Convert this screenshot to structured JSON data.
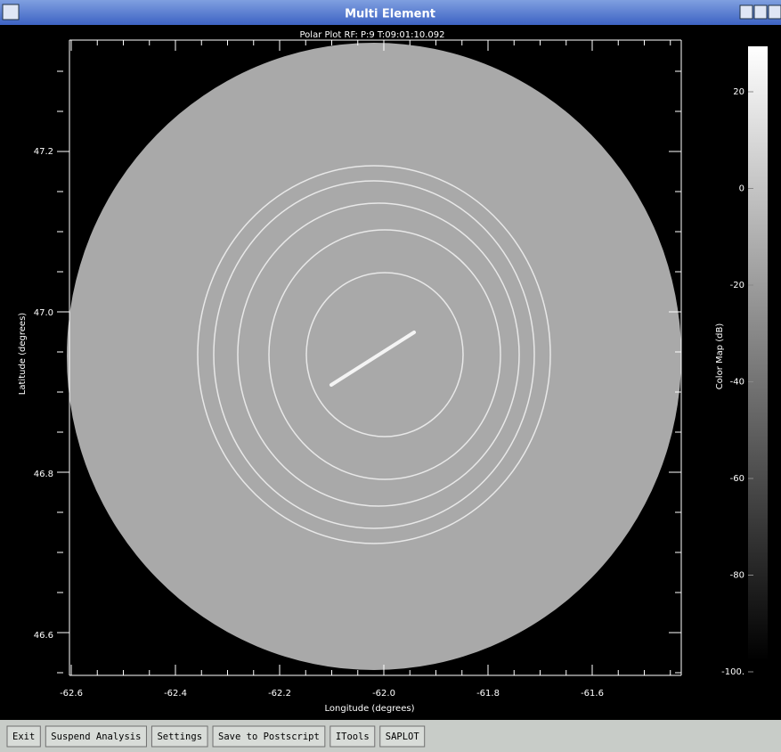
{
  "window": {
    "title": "Multi Element"
  },
  "plot": {
    "title": "Polar Plot RF: P:9 T:09:01:10.092",
    "xlabel": "Longitude (degrees)",
    "ylabel": "Latitude (degrees)",
    "xtick_labels": [
      "-62.6",
      "-62.4",
      "-62.2",
      "-62.0",
      "-61.8",
      "-61.6"
    ],
    "ytick_labels": [
      "47.2",
      "47.0",
      "46.8",
      "46.6"
    ]
  },
  "colorbar": {
    "label": "Color Map (dB)",
    "tick_labels": [
      "20",
      "0",
      "-20",
      "-40",
      "-60",
      "-80",
      "-100."
    ]
  },
  "buttons": [
    "Exit",
    "Suspend Analysis",
    "Settings",
    "Save to Postscript",
    "ITools",
    "SAPLOT"
  ]
}
